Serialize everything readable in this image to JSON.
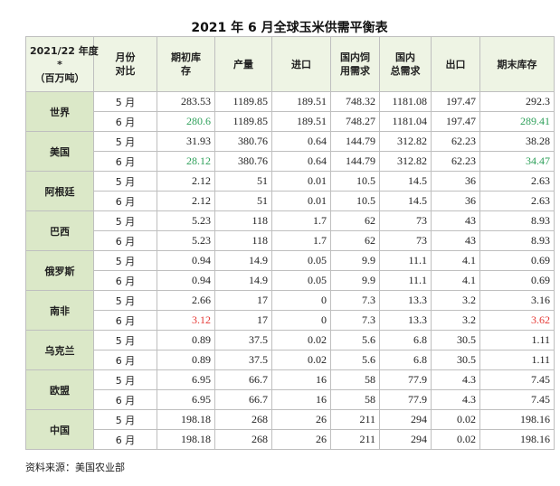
{
  "header": {
    "title": "2021 年 6 月全球玉米供需平衡表"
  },
  "table": {
    "columns": [
      [
        "2021/22 年度",
        "*",
        "（百万吨）"
      ],
      [
        "月份",
        "对比"
      ],
      [
        "期初库",
        "存"
      ],
      [
        "产量"
      ],
      [
        "进口"
      ],
      [
        "国内饲",
        "用需求"
      ],
      [
        "国内",
        "总需求"
      ],
      [
        "出口"
      ],
      [
        "期末库存"
      ]
    ],
    "groups": [
      {
        "country": "世界",
        "rows": [
          {
            "month": "5 月",
            "values": [
              283.53,
              1189.85,
              189.51,
              748.32,
              1181.08,
              197.47,
              292.3
            ]
          },
          {
            "month": "6 月",
            "values": [
              280.6,
              1189.85,
              189.51,
              748.27,
              1181.04,
              197.47,
              289.41
            ],
            "colors": {
              "0": "#2ea05a",
              "6": "#2ea05a"
            }
          }
        ]
      },
      {
        "country": "美国",
        "rows": [
          {
            "month": "5 月",
            "values": [
              31.93,
              380.76,
              0.64,
              144.79,
              312.82,
              62.23,
              38.28
            ]
          },
          {
            "month": "6 月",
            "values": [
              28.12,
              380.76,
              0.64,
              144.79,
              312.82,
              62.23,
              34.47
            ],
            "colors": {
              "0": "#2ea05a",
              "6": "#2ea05a"
            }
          }
        ]
      },
      {
        "country": "阿根廷",
        "rows": [
          {
            "month": "5 月",
            "values": [
              2.12,
              51,
              0.01,
              10.5,
              14.5,
              36,
              2.63
            ]
          },
          {
            "month": "6 月",
            "values": [
              2.12,
              51,
              0.01,
              10.5,
              14.5,
              36,
              2.63
            ]
          }
        ]
      },
      {
        "country": "巴西",
        "rows": [
          {
            "month": "5 月",
            "values": [
              5.23,
              118,
              1.7,
              62,
              73,
              43,
              8.93
            ]
          },
          {
            "month": "6 月",
            "values": [
              5.23,
              118,
              1.7,
              62,
              73,
              43,
              8.93
            ]
          }
        ]
      },
      {
        "country": "俄罗斯",
        "rows": [
          {
            "month": "5 月",
            "values": [
              0.94,
              14.9,
              0.05,
              9.9,
              11.1,
              4.1,
              0.69
            ]
          },
          {
            "month": "6 月",
            "values": [
              0.94,
              14.9,
              0.05,
              9.9,
              11.1,
              4.1,
              0.69
            ]
          }
        ]
      },
      {
        "country": "南非",
        "rows": [
          {
            "month": "5 月",
            "values": [
              2.66,
              17,
              0,
              7.3,
              13.3,
              3.2,
              3.16
            ]
          },
          {
            "month": "6 月",
            "values": [
              3.12,
              17,
              0,
              7.3,
              13.3,
              3.2,
              3.62
            ],
            "colors": {
              "0": "#e53935",
              "6": "#e53935"
            }
          }
        ]
      },
      {
        "country": "乌克兰",
        "rows": [
          {
            "month": "5 月",
            "values": [
              0.89,
              37.5,
              0.02,
              5.6,
              6.8,
              30.5,
              1.11
            ]
          },
          {
            "month": "6 月",
            "values": [
              0.89,
              37.5,
              0.02,
              5.6,
              6.8,
              30.5,
              1.11
            ]
          }
        ]
      },
      {
        "country": "欧盟",
        "rows": [
          {
            "month": "5 月",
            "values": [
              6.95,
              66.7,
              16,
              58,
              77.9,
              4.3,
              7.45
            ]
          },
          {
            "month": "6 月",
            "values": [
              6.95,
              66.7,
              16,
              58,
              77.9,
              4.3,
              7.45
            ]
          }
        ]
      },
      {
        "country": "中国",
        "rows": [
          {
            "month": "5 月",
            "values": [
              198.18,
              268,
              26,
              211,
              294,
              0.02,
              198.16
            ]
          },
          {
            "month": "6 月",
            "values": [
              198.18,
              268,
              26,
              211,
              294,
              0.02,
              198.16
            ]
          }
        ]
      }
    ]
  },
  "footer": {
    "source": "资料来源：美国农业部"
  }
}
